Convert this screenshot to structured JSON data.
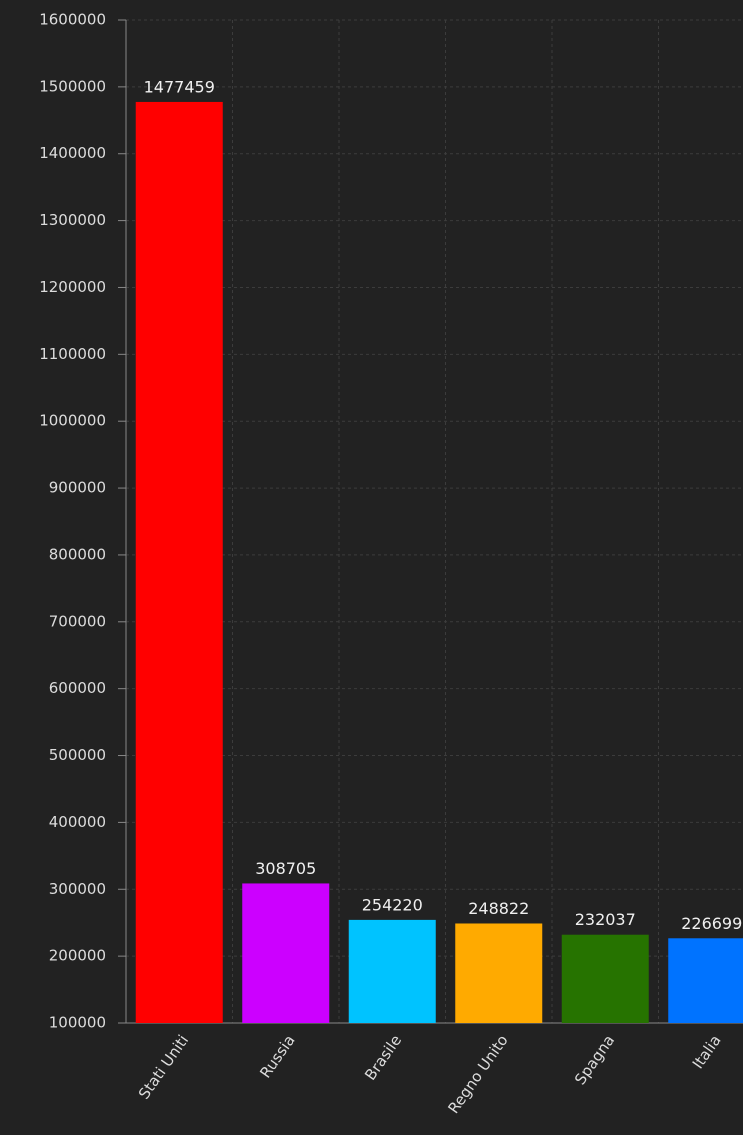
{
  "chart_data": {
    "type": "bar",
    "categories": [
      "Stati Uniti",
      "Russia",
      "Brasile",
      "Regno Unito",
      "Spagna",
      "Italia"
    ],
    "values": [
      1477459,
      308705,
      254220,
      248822,
      232037,
      226699
    ],
    "colors": [
      "#ff0000",
      "#cc00ff",
      "#00c3ff",
      "#ffaa00",
      "#267300",
      "#0073ff"
    ],
    "ylim": [
      100000,
      1600000
    ],
    "yticks": [
      100000,
      200000,
      300000,
      400000,
      500000,
      600000,
      700000,
      800000,
      900000,
      1000000,
      1100000,
      1200000,
      1300000,
      1400000,
      1500000,
      1600000
    ],
    "grid": true
  }
}
